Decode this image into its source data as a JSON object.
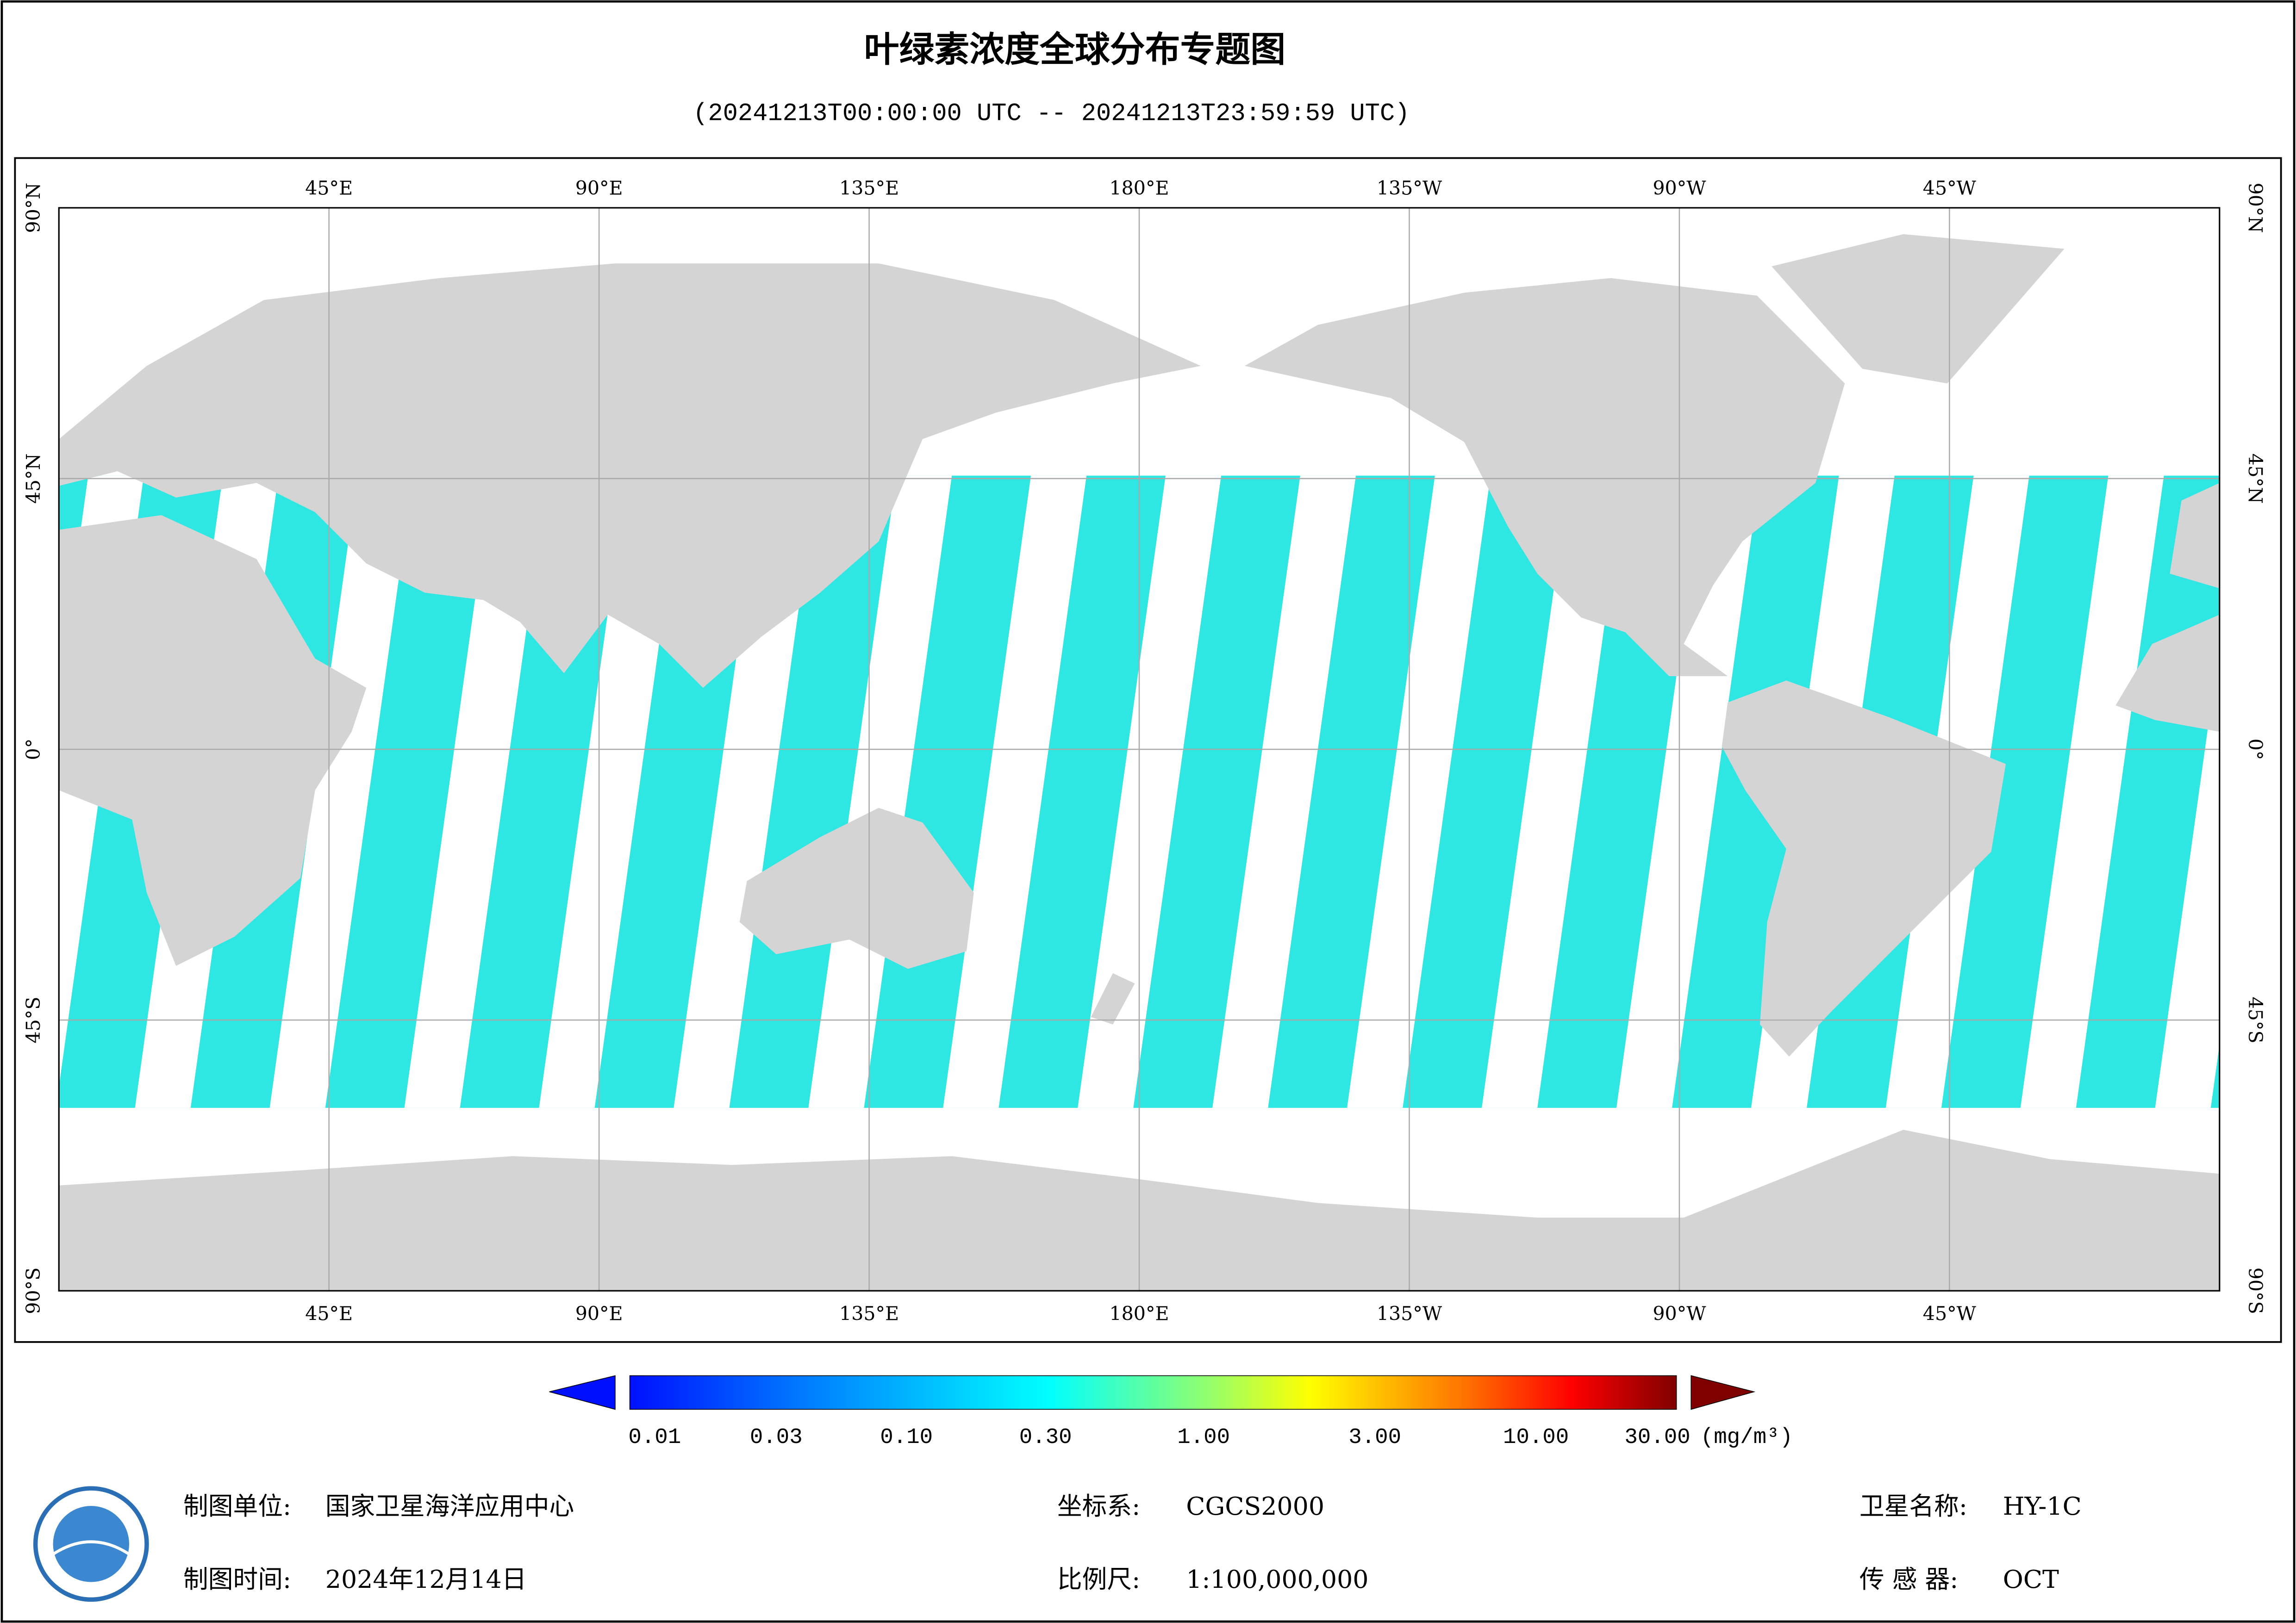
{
  "title": "叶绿素浓度全球分布专题图",
  "subtitle": "(20241213T00:00:00 UTC -- 20241213T23:59:59 UTC)",
  "map": {
    "lon_labels": [
      "45°E",
      "90°E",
      "135°E",
      "180°E",
      "135°W",
      "90°W",
      "45°W"
    ],
    "lat_labels": [
      "90°N",
      "45°N",
      "0°",
      "45°S",
      "90°S"
    ]
  },
  "colorbar": {
    "labels": [
      "0.01",
      "0.03",
      "0.10",
      "0.30",
      "1.00",
      "3.00",
      "10.00",
      "30.00"
    ],
    "unit": "(mg/m³)"
  },
  "footer": [
    {
      "label": "制图单位:",
      "value": "国家卫星海洋应用中心"
    },
    {
      "label": "坐标系:",
      "value": "CGCS2000"
    },
    {
      "label": "卫星名称:",
      "value": "HY-1C"
    },
    {
      "label": "制图时间:",
      "value": "2024年12月14日"
    },
    {
      "label": "比例尺:",
      "value": "1:100,000,000"
    },
    {
      "label": "传 感 器:",
      "value": "OCT"
    }
  ]
}
